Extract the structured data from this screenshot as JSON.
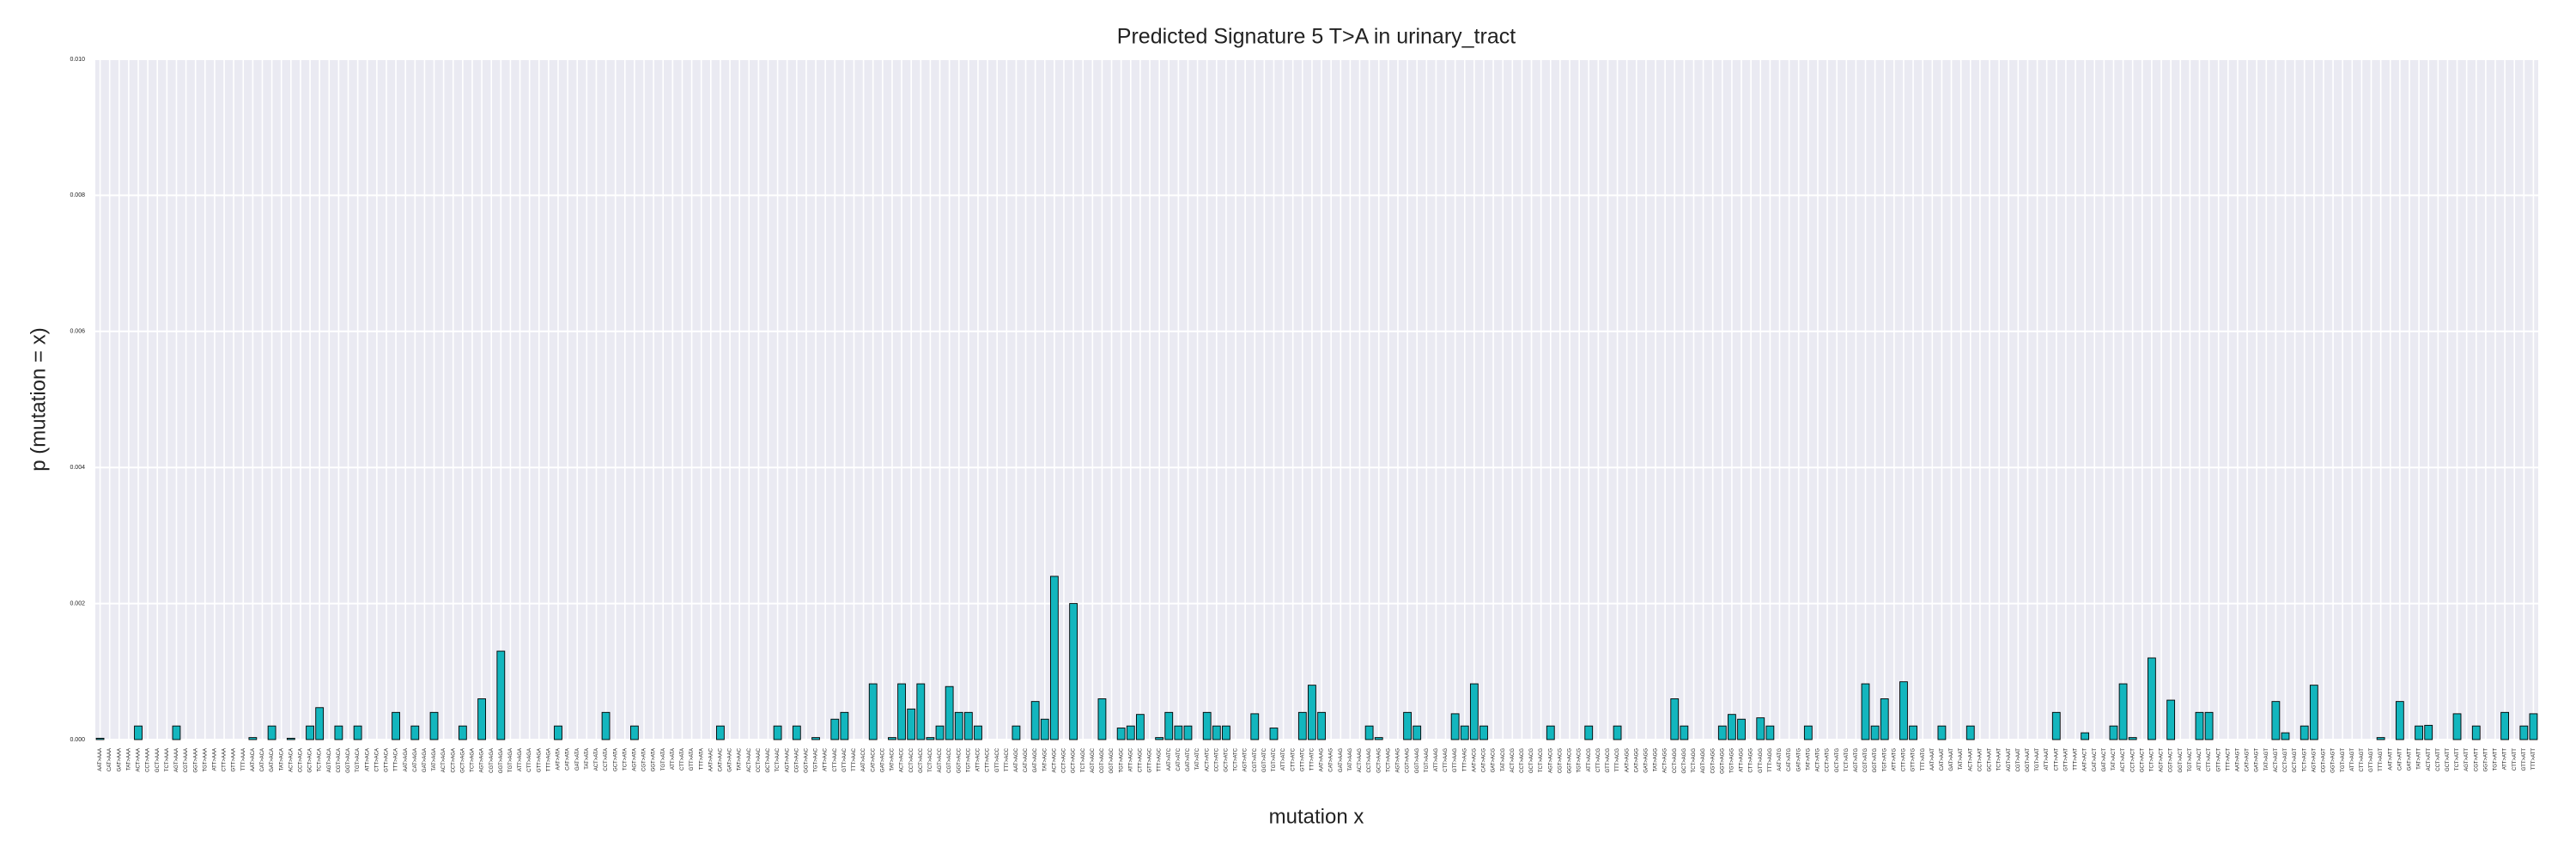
{
  "chart_data": {
    "type": "bar",
    "title": "Predicted Signature 5 T>A in urinary_tract",
    "xlabel": "mutation x",
    "ylabel": "p (mutation = x)",
    "color": "#13b6be",
    "edgecolor": "#000000",
    "background": "#eaeaf2",
    "grid": true,
    "ylim": [
      0,
      0.01
    ],
    "yticks": [
      {
        "value": 0,
        "label": "0.000"
      },
      0.002,
      0.004,
      0.006,
      0.008,
      {
        "value": 0.01,
        "label": "0.010"
      }
    ],
    "categories": [
      "AAT>AAA",
      "CAT>AAA",
      "GAT>AAA",
      "TAT>AAA",
      "ACT>AAA",
      "CCT>AAA",
      "GCT>AAA",
      "TCT>AAA",
      "AGT>AAA",
      "CGT>AAA",
      "GGT>AAA",
      "TGT>AAA",
      "ATT>AAA",
      "CTT>AAA",
      "GTT>AAA",
      "TTT>AAA",
      "AAT>ACA",
      "CAT>ACA",
      "GAT>ACA",
      "TAT>ACA",
      "ACT>ACA",
      "CCT>ACA",
      "GCT>ACA",
      "TCT>ACA",
      "AGT>ACA",
      "CGT>ACA",
      "GGT>ACA",
      "TGT>ACA",
      "ATT>ACA",
      "CTT>ACA",
      "GTT>ACA",
      "TTT>ACA",
      "AAT>AGA",
      "CAT>AGA",
      "GAT>AGA",
      "TAT>AGA",
      "ACT>AGA",
      "CCT>AGA",
      "GCT>AGA",
      "TCT>AGA",
      "AGT>AGA",
      "CGT>AGA",
      "GGT>AGA",
      "TGT>AGA",
      "ATT>AGA",
      "CTT>AGA",
      "GTT>AGA",
      "TTT>AGA",
      "AAT>ATA",
      "CAT>ATA",
      "GAT>ATA",
      "TAT>ATA",
      "ACT>ATA",
      "CCT>ATA",
      "GCT>ATA",
      "TCT>ATA",
      "AGT>ATA",
      "CGT>ATA",
      "GGT>ATA",
      "TGT>ATA",
      "ATT>ATA",
      "CTT>ATA",
      "GTT>ATA",
      "TTT>ATA",
      "AAT>AAC",
      "CAT>AAC",
      "GAT>AAC",
      "TAT>AAC",
      "ACT>AAC",
      "CCT>AAC",
      "GCT>AAC",
      "TCT>AAC",
      "AGT>AAC",
      "CGT>AAC",
      "GGT>AAC",
      "TGT>AAC",
      "ATT>AAC",
      "CTT>AAC",
      "GTT>AAC",
      "TTT>AAC",
      "AAT>ACC",
      "CAT>ACC",
      "GAT>ACC",
      "TAT>ACC",
      "ACT>ACC",
      "CCT>ACC",
      "GCT>ACC",
      "TCT>ACC",
      "AGT>ACC",
      "CGT>ACC",
      "GGT>ACC",
      "TGT>ACC",
      "ATT>ACC",
      "CTT>ACC",
      "GTT>ACC",
      "TTT>ACC",
      "AAT>AGC",
      "CAT>AGC",
      "GAT>AGC",
      "TAT>AGC",
      "ACT>AGC",
      "CCT>AGC",
      "GCT>AGC",
      "TCT>AGC",
      "AGT>AGC",
      "CGT>AGC",
      "GGT>AGC",
      "TGT>AGC",
      "ATT>AGC",
      "CTT>AGC",
      "GTT>AGC",
      "TTT>AGC",
      "AAT>ATC",
      "CAT>ATC",
      "GAT>ATC",
      "TAT>ATC",
      "ACT>ATC",
      "CCT>ATC",
      "GCT>ATC",
      "TCT>ATC",
      "AGT>ATC",
      "CGT>ATC",
      "GGT>ATC",
      "TGT>ATC",
      "ATT>ATC",
      "CTT>ATC",
      "GTT>ATC",
      "TTT>ATC",
      "AAT>AAG",
      "CAT>AAG",
      "GAT>AAG",
      "TAT>AAG",
      "ACT>AAG",
      "CCT>AAG",
      "GCT>AAG",
      "TCT>AAG",
      "AGT>AAG",
      "CGT>AAG",
      "GGT>AAG",
      "TGT>AAG",
      "ATT>AAG",
      "CTT>AAG",
      "GTT>AAG",
      "TTT>AAG",
      "AAT>ACG",
      "CAT>ACG",
      "GAT>ACG",
      "TAT>ACG",
      "ACT>ACG",
      "CCT>ACG",
      "GCT>ACG",
      "TCT>ACG",
      "AGT>ACG",
      "CGT>ACG",
      "GGT>ACG",
      "TGT>ACG",
      "ATT>ACG",
      "CTT>ACG",
      "GTT>ACG",
      "TTT>ACG",
      "AAT>AGG",
      "CAT>AGG",
      "GAT>AGG",
      "TAT>AGG",
      "ACT>AGG",
      "CCT>AGG",
      "GCT>AGG",
      "TCT>AGG",
      "AGT>AGG",
      "CGT>AGG",
      "GGT>AGG",
      "TGT>AGG",
      "ATT>AGG",
      "CTT>AGG",
      "GTT>AGG",
      "TTT>AGG",
      "AAT>ATG",
      "CAT>ATG",
      "GAT>ATG",
      "TAT>ATG",
      "ACT>ATG",
      "CCT>ATG",
      "GCT>ATG",
      "TCT>ATG",
      "AGT>ATG",
      "CGT>ATG",
      "GGT>ATG",
      "TGT>ATG",
      "ATT>ATG",
      "CTT>ATG",
      "GTT>ATG",
      "TTT>ATG",
      "AAT>AAT",
      "CAT>AAT",
      "GAT>AAT",
      "TAT>AAT",
      "ACT>AAT",
      "CCT>AAT",
      "GCT>AAT",
      "TCT>AAT",
      "AGT>AAT",
      "CGT>AAT",
      "GGT>AAT",
      "TGT>AAT",
      "ATT>AAT",
      "CTT>AAT",
      "GTT>AAT",
      "TTT>AAT",
      "AAT>ACT",
      "CAT>ACT",
      "GAT>ACT",
      "TAT>ACT",
      "ACT>ACT",
      "CCT>ACT",
      "GCT>ACT",
      "TCT>ACT",
      "AGT>ACT",
      "CGT>ACT",
      "GGT>ACT",
      "TGT>ACT",
      "ATT>ACT",
      "CTT>ACT",
      "GTT>ACT",
      "TTT>ACT",
      "AAT>AGT",
      "CAT>AGT",
      "GAT>AGT",
      "TAT>AGT",
      "ACT>AGT",
      "CCT>AGT",
      "GCT>AGT",
      "TCT>AGT",
      "AGT>AGT",
      "CGT>AGT",
      "GGT>AGT",
      "TGT>AGT",
      "ATT>AGT",
      "CTT>AGT",
      "GTT>AGT",
      "TTT>AGT",
      "AAT>ATT",
      "CAT>ATT",
      "GAT>ATT",
      "TAT>ATT",
      "ACT>ATT",
      "CCT>ATT",
      "GCT>ATT",
      "TCT>ATT",
      "AGT>ATT",
      "CGT>ATT",
      "GGT>ATT",
      "TGT>ATT",
      "ATT>ATT",
      "CTT>ATT",
      "GTT>ATT",
      "TTT>ATT"
    ],
    "values": [
      2e-05,
      0,
      0,
      0,
      0.0002,
      0,
      0,
      0,
      0.0002,
      0,
      0,
      0,
      0,
      0,
      0,
      0,
      3e-05,
      0,
      0.0002,
      0,
      2e-05,
      0,
      0.0002,
      0.00047,
      0,
      0.0002,
      0,
      0.0002,
      0,
      0,
      0,
      0.0004,
      0,
      0.0002,
      0,
      0.0004,
      0,
      0,
      0.0002,
      0,
      0.0006,
      0,
      0.0013,
      0,
      0,
      0,
      0,
      0,
      0.0002,
      0,
      0,
      0,
      0,
      0.0004,
      0,
      0,
      0.0002,
      0,
      0,
      0,
      0,
      0,
      0,
      0,
      0,
      0.0002,
      0,
      0,
      0,
      0,
      0,
      0.0002,
      0,
      0.0002,
      0,
      3e-05,
      0,
      0.0003,
      0.0004,
      0,
      0,
      0.00082,
      0,
      3e-05,
      0.00082,
      0.00045,
      0.00082,
      3e-05,
      0.0002,
      0.00078,
      0.0004,
      0.0004,
      0.0002,
      0,
      0,
      0,
      0.0002,
      0,
      0.00056,
      0.0003,
      0.0024,
      0,
      0.002,
      0,
      0,
      0.0006,
      0,
      0.00017,
      0.0002,
      0.00037,
      0,
      3e-05,
      0.0004,
      0.0002,
      0.0002,
      0,
      0.0004,
      0.0002,
      0.0002,
      0,
      0,
      0.00038,
      0,
      0.00017,
      0,
      0,
      0.0004,
      0.0008,
      0.0004,
      0,
      0,
      0,
      0,
      0.0002,
      3e-05,
      0,
      0,
      0.0004,
      0.0002,
      0,
      0,
      0,
      0.00038,
      0.0002,
      0.00082,
      0.0002,
      0,
      0,
      0,
      0,
      0,
      0,
      0.0002,
      0,
      0,
      0,
      0.0002,
      0,
      0,
      0.0002,
      0,
      0,
      0,
      0,
      0,
      0.0006,
      0.0002,
      0,
      0,
      0,
      0.0002,
      0.00037,
      0.0003,
      0,
      0.00032,
      0.0002,
      0,
      0,
      0,
      0.0002,
      0,
      0,
      0,
      0,
      0,
      0.00082,
      0.0002,
      0.0006,
      0,
      0.00085,
      0.0002,
      0,
      0,
      0.0002,
      0,
      0,
      0.0002,
      0,
      0,
      0,
      0,
      0,
      0,
      0,
      0,
      0.0004,
      0,
      0,
      0.0001,
      0,
      0,
      0.0002,
      0.00082,
      3e-05,
      0,
      0.0012,
      0,
      0.00058,
      0,
      0,
      0.0004,
      0.0004,
      0,
      0,
      0,
      0,
      0,
      0,
      0.00056,
      0.0001,
      0,
      0.0002,
      0.0008,
      0,
      0,
      0,
      0,
      0,
      0,
      3e-05,
      0,
      0.00056,
      0,
      0.0002,
      0.00021,
      0,
      0,
      0.00038,
      0,
      0.0002,
      0,
      0,
      0.0004,
      0,
      0.0002,
      0.00038
    ]
  }
}
